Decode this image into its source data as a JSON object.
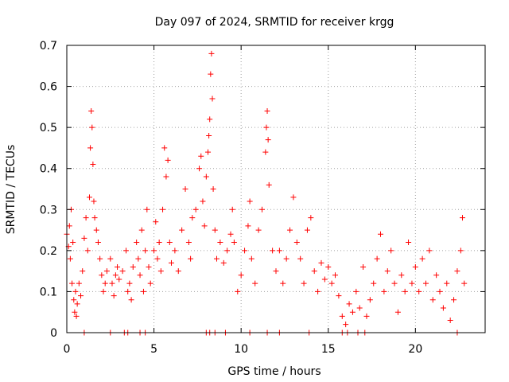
{
  "chart_data": {
    "type": "scatter",
    "title": "Day 097 of 2024, SRMTID for receiver krgg",
    "xlabel": "GPS time / hours",
    "ylabel": "SRMTID / TECUs",
    "xlim": [
      0,
      24
    ],
    "ylim": [
      0,
      0.7
    ],
    "xticks": [
      0,
      5,
      10,
      15,
      20
    ],
    "yticks": [
      0,
      0.1,
      0.2,
      0.3,
      0.4,
      0.5,
      0.6,
      0.7
    ],
    "xtick_labels": [
      "0",
      "5",
      "10",
      "15",
      "20"
    ],
    "ytick_labels": [
      "0",
      "0.1",
      "0.2",
      "0.3",
      "0.4",
      "0.5",
      "0.6",
      "0.7"
    ],
    "grid": true,
    "marker": "+",
    "color": "#ff0000",
    "series": [
      {
        "name": "SRMTID",
        "points": [
          [
            0.0,
            0.24
          ],
          [
            0.1,
            0.21
          ],
          [
            0.15,
            0.26
          ],
          [
            0.2,
            0.18
          ],
          [
            0.25,
            0.3
          ],
          [
            0.3,
            0.12
          ],
          [
            0.35,
            0.22
          ],
          [
            0.4,
            0.08
          ],
          [
            0.45,
            0.05
          ],
          [
            0.5,
            0.1
          ],
          [
            0.55,
            0.04
          ],
          [
            0.6,
            0.07
          ],
          [
            0.7,
            0.12
          ],
          [
            0.8,
            0.09
          ],
          [
            0.9,
            0.15
          ],
          [
            1.0,
            0.23
          ],
          [
            1.1,
            0.28
          ],
          [
            1.2,
            0.2
          ],
          [
            1.3,
            0.33
          ],
          [
            1.35,
            0.45
          ],
          [
            1.4,
            0.54
          ],
          [
            1.45,
            0.5
          ],
          [
            1.5,
            0.41
          ],
          [
            1.55,
            0.32
          ],
          [
            1.6,
            0.28
          ],
          [
            1.7,
            0.25
          ],
          [
            1.8,
            0.22
          ],
          [
            1.9,
            0.18
          ],
          [
            2.0,
            0.14
          ],
          [
            2.1,
            0.1
          ],
          [
            2.2,
            0.12
          ],
          [
            2.3,
            0.15
          ],
          [
            2.5,
            0.18
          ],
          [
            2.6,
            0.12
          ],
          [
            2.7,
            0.09
          ],
          [
            2.8,
            0.14
          ],
          [
            2.9,
            0.16
          ],
          [
            3.0,
            0.13
          ],
          [
            3.2,
            0.15
          ],
          [
            3.4,
            0.2
          ],
          [
            3.5,
            0.1
          ],
          [
            3.6,
            0.12
          ],
          [
            3.7,
            0.08
          ],
          [
            3.8,
            0.16
          ],
          [
            4.0,
            0.22
          ],
          [
            4.1,
            0.18
          ],
          [
            4.2,
            0.14
          ],
          [
            4.3,
            0.25
          ],
          [
            4.4,
            0.1
          ],
          [
            4.5,
            0.2
          ],
          [
            4.6,
            0.3
          ],
          [
            4.7,
            0.16
          ],
          [
            4.8,
            0.12
          ],
          [
            5.0,
            0.2
          ],
          [
            5.1,
            0.27
          ],
          [
            5.2,
            0.18
          ],
          [
            5.3,
            0.22
          ],
          [
            5.4,
            0.15
          ],
          [
            5.5,
            0.3
          ],
          [
            5.6,
            0.45
          ],
          [
            5.7,
            0.38
          ],
          [
            5.8,
            0.42
          ],
          [
            5.9,
            0.22
          ],
          [
            6.0,
            0.17
          ],
          [
            6.2,
            0.2
          ],
          [
            6.4,
            0.15
          ],
          [
            6.6,
            0.25
          ],
          [
            6.8,
            0.35
          ],
          [
            7.0,
            0.22
          ],
          [
            7.1,
            0.18
          ],
          [
            7.2,
            0.28
          ],
          [
            7.4,
            0.3
          ],
          [
            7.6,
            0.4
          ],
          [
            7.7,
            0.43
          ],
          [
            7.8,
            0.32
          ],
          [
            7.9,
            0.26
          ],
          [
            8.0,
            0.38
          ],
          [
            8.1,
            0.44
          ],
          [
            8.15,
            0.48
          ],
          [
            8.2,
            0.52
          ],
          [
            8.25,
            0.63
          ],
          [
            8.3,
            0.68
          ],
          [
            8.35,
            0.57
          ],
          [
            8.4,
            0.35
          ],
          [
            8.5,
            0.25
          ],
          [
            8.6,
            0.18
          ],
          [
            8.8,
            0.22
          ],
          [
            9.0,
            0.17
          ],
          [
            9.2,
            0.2
          ],
          [
            9.4,
            0.24
          ],
          [
            9.5,
            0.3
          ],
          [
            9.6,
            0.22
          ],
          [
            9.8,
            0.1
          ],
          [
            10.0,
            0.14
          ],
          [
            10.2,
            0.2
          ],
          [
            10.4,
            0.26
          ],
          [
            10.5,
            0.32
          ],
          [
            10.6,
            0.18
          ],
          [
            10.8,
            0.12
          ],
          [
            11.0,
            0.25
          ],
          [
            11.2,
            0.3
          ],
          [
            11.4,
            0.44
          ],
          [
            11.45,
            0.5
          ],
          [
            11.5,
            0.54
          ],
          [
            11.55,
            0.47
          ],
          [
            11.6,
            0.36
          ],
          [
            11.8,
            0.2
          ],
          [
            12.0,
            0.15
          ],
          [
            12.2,
            0.2
          ],
          [
            12.4,
            0.12
          ],
          [
            12.6,
            0.18
          ],
          [
            12.8,
            0.25
          ],
          [
            13.0,
            0.33
          ],
          [
            13.2,
            0.22
          ],
          [
            13.4,
            0.18
          ],
          [
            13.6,
            0.12
          ],
          [
            13.8,
            0.25
          ],
          [
            14.0,
            0.28
          ],
          [
            14.2,
            0.15
          ],
          [
            14.4,
            0.1
          ],
          [
            14.6,
            0.17
          ],
          [
            14.8,
            0.13
          ],
          [
            15.0,
            0.16
          ],
          [
            15.2,
            0.12
          ],
          [
            15.4,
            0.14
          ],
          [
            15.6,
            0.09
          ],
          [
            15.8,
            0.04
          ],
          [
            16.0,
            0.02
          ],
          [
            16.2,
            0.07
          ],
          [
            16.4,
            0.05
          ],
          [
            16.6,
            0.1
          ],
          [
            16.8,
            0.06
          ],
          [
            17.0,
            0.16
          ],
          [
            17.2,
            0.04
          ],
          [
            17.4,
            0.08
          ],
          [
            17.6,
            0.12
          ],
          [
            17.8,
            0.18
          ],
          [
            18.0,
            0.24
          ],
          [
            18.2,
            0.1
          ],
          [
            18.4,
            0.15
          ],
          [
            18.6,
            0.2
          ],
          [
            18.8,
            0.12
          ],
          [
            19.0,
            0.05
          ],
          [
            19.2,
            0.14
          ],
          [
            19.4,
            0.1
          ],
          [
            19.6,
            0.22
          ],
          [
            19.8,
            0.12
          ],
          [
            20.0,
            0.16
          ],
          [
            20.2,
            0.1
          ],
          [
            20.4,
            0.18
          ],
          [
            20.6,
            0.12
          ],
          [
            20.8,
            0.2
          ],
          [
            21.0,
            0.08
          ],
          [
            21.2,
            0.14
          ],
          [
            21.4,
            0.1
          ],
          [
            21.6,
            0.06
          ],
          [
            21.8,
            0.12
          ],
          [
            22.0,
            0.03
          ],
          [
            22.2,
            0.08
          ],
          [
            22.4,
            0.15
          ],
          [
            22.6,
            0.2
          ],
          [
            22.7,
            0.28
          ],
          [
            22.8,
            0.12
          ]
        ]
      }
    ],
    "baseline_points_x": [
      1.0,
      2.5,
      3.3,
      3.5,
      4.2,
      4.5,
      8.0,
      8.2,
      8.5,
      9.1,
      10.5,
      11.5,
      12.2,
      13.9,
      15.8,
      16.1,
      16.7,
      17.1,
      22.4
    ]
  }
}
